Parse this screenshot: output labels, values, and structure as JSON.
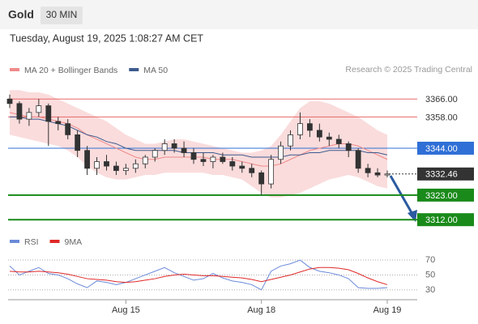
{
  "header": {
    "symbol": "Gold",
    "timeframe": "30 MIN",
    "timestamp": "Tuesday, August 19, 2025 1:08:27 AM CET",
    "credit": "Research © 2025 Trading Central"
  },
  "chart_data": [
    {
      "type": "candlestick",
      "categories": [
        null,
        null,
        null,
        null,
        null,
        null,
        null,
        null,
        null,
        null,
        null,
        null,
        "Aug 15",
        null,
        null,
        null,
        null,
        null,
        null,
        null,
        null,
        null,
        null,
        null,
        null,
        null,
        "Aug 18",
        null,
        null,
        null,
        null,
        null,
        null,
        null,
        null,
        null,
        null,
        null,
        null,
        "Aug 19"
      ],
      "open": [
        3366,
        3364,
        3357,
        3360,
        3363,
        3356,
        3355,
        3350,
        3343,
        3335,
        3338,
        3336,
        3334,
        3335,
        3337,
        3340,
        3343,
        3346,
        3344,
        3342,
        3339,
        3338,
        3340,
        3338,
        3336,
        3335,
        3333,
        3328,
        3339,
        3345,
        3350,
        3355,
        3352,
        3349,
        3348,
        3346,
        3343,
        3335,
        3333,
        3332
      ],
      "high": [
        3368,
        3365,
        3362,
        3366,
        3364,
        3358,
        3357,
        3352,
        3345,
        3340,
        3341,
        3338,
        3337,
        3339,
        3341,
        3344,
        3348,
        3348,
        3347,
        3344,
        3342,
        3341,
        3342,
        3340,
        3338,
        3337,
        3334,
        3341,
        3347,
        3352,
        3360,
        3357,
        3355,
        3351,
        3350,
        3347,
        3344,
        3337,
        3335,
        3334
      ],
      "low": [
        3362,
        3355,
        3354,
        3358,
        3345,
        3352,
        3348,
        3340,
        3332,
        3332,
        3334,
        3332,
        3332,
        3333,
        3335,
        3338,
        3341,
        3342,
        3340,
        3337,
        3336,
        3335,
        3337,
        3334,
        3333,
        3331,
        3323,
        3326,
        3337,
        3343,
        3348,
        3349,
        3347,
        3345,
        3344,
        3340,
        3333,
        3331,
        3331,
        3331
      ],
      "close": [
        3364,
        3357,
        3360,
        3363,
        3356,
        3355,
        3350,
        3343,
        3335,
        3338,
        3336,
        3334,
        3335,
        3337,
        3340,
        3343,
        3346,
        3344,
        3342,
        3339,
        3338,
        3340,
        3338,
        3336,
        3335,
        3333,
        3328,
        3339,
        3345,
        3350,
        3355,
        3352,
        3349,
        3348,
        3346,
        3343,
        3335,
        3333,
        3332,
        3332.46
      ],
      "color": "#333333",
      "ylim": [
        3307,
        3373
      ],
      "series": [
        {
          "name": "MA 20 + Bollinger Bands",
          "color": "#f08a8a",
          "values": [
            3360,
            3359,
            3358,
            3358,
            3357,
            3356,
            3355,
            3353,
            3350,
            3348,
            3346,
            3344,
            3342,
            3340,
            3339,
            3339,
            3340,
            3340,
            3340,
            3340,
            3340,
            3339,
            3339,
            3339,
            3338,
            3337,
            3336,
            3336,
            3337,
            3339,
            3341,
            3343,
            3344,
            3345,
            3346,
            3346,
            3345,
            3343,
            3341,
            3339
          ],
          "upper": [
            3370,
            3370,
            3369,
            3369,
            3368,
            3366,
            3364,
            3362,
            3360,
            3358,
            3356,
            3353,
            3350,
            3348,
            3346,
            3346,
            3347,
            3348,
            3348,
            3347,
            3346,
            3345,
            3344,
            3343,
            3342,
            3342,
            3343,
            3345,
            3350,
            3356,
            3362,
            3365,
            3365,
            3364,
            3362,
            3360,
            3358,
            3355,
            3352,
            3350
          ],
          "lower": [
            3350,
            3349,
            3348,
            3347,
            3346,
            3345,
            3343,
            3340,
            3336,
            3333,
            3331,
            3330,
            3330,
            3331,
            3332,
            3332,
            3333,
            3333,
            3333,
            3333,
            3333,
            3332,
            3332,
            3331,
            3330,
            3327,
            3324,
            3322,
            3322,
            3323,
            3324,
            3326,
            3328,
            3330,
            3331,
            3332,
            3331,
            3329,
            3327,
            3326
          ]
        },
        {
          "name": "MA 50",
          "color": "#3d5a8f",
          "values": [
            3358,
            3358,
            3357,
            3357,
            3356,
            3355,
            3354,
            3352,
            3350,
            3349,
            3347,
            3346,
            3344,
            3343,
            3343,
            3343,
            3343,
            3343,
            3342,
            3342,
            3342,
            3342,
            3341,
            3341,
            3341,
            3340,
            3340,
            3340,
            3340,
            3341,
            3341,
            3342,
            3342,
            3343,
            3343,
            3343,
            3343,
            3342,
            3342,
            3341
          ]
        }
      ],
      "levels": [
        {
          "value": 3366,
          "label": "3366.00",
          "color": "#e86a6a",
          "style": "resistance"
        },
        {
          "value": 3358,
          "label": "3358.00",
          "color": "#e86a6a",
          "style": "resistance"
        },
        {
          "value": 3344,
          "label": "3344.00",
          "color": "#2f6fd6",
          "style": "pivot"
        },
        {
          "value": 3332.46,
          "label": "3332.46",
          "color": "#333333",
          "style": "current"
        },
        {
          "value": 3323,
          "label": "3323.00",
          "color": "#1a8a1a",
          "style": "support"
        },
        {
          "value": 3312,
          "label": "3312.00",
          "color": "#1a8a1a",
          "style": "support"
        }
      ]
    },
    {
      "type": "line",
      "series": [
        {
          "name": "RSI",
          "color": "#6b8ad9",
          "values": [
            62,
            50,
            55,
            60,
            52,
            50,
            45,
            38,
            33,
            42,
            40,
            37,
            40,
            45,
            50,
            55,
            60,
            53,
            48,
            43,
            45,
            52,
            46,
            42,
            40,
            37,
            30,
            55,
            62,
            65,
            70,
            60,
            55,
            53,
            50,
            45,
            33,
            32,
            32,
            33
          ]
        },
        {
          "name": "9MA",
          "color": "#e02828",
          "values": [
            55,
            54,
            54,
            55,
            54,
            53,
            51,
            48,
            45,
            44,
            43,
            41,
            40,
            41,
            43,
            45,
            48,
            50,
            51,
            50,
            49,
            49,
            48,
            47,
            46,
            44,
            41,
            44,
            47,
            50,
            54,
            58,
            60,
            60,
            59,
            57,
            52,
            46,
            41,
            37
          ]
        }
      ],
      "ylim": [
        19,
        82
      ],
      "yticks": [
        70,
        50,
        30
      ]
    }
  ]
}
